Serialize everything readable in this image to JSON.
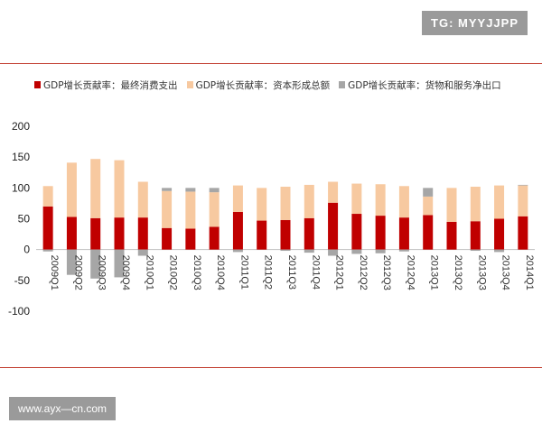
{
  "header": {
    "tag": "TG: MYYJJPP"
  },
  "footer": {
    "url": "www.ayx—cn.com"
  },
  "chart_data": {
    "type": "bar",
    "stacked": true,
    "categories": [
      "2009Q1",
      "2009Q2",
      "2009Q3",
      "2009Q4",
      "2010Q1",
      "2010Q2",
      "2010Q3",
      "2010Q4",
      "2011Q1",
      "2011Q2",
      "2011Q3",
      "2011Q4",
      "2012Q1",
      "2012Q2",
      "2012Q3",
      "2012Q4",
      "2013Q1",
      "2013Q2",
      "2013Q3",
      "2013Q4",
      "2014Q1"
    ],
    "series": [
      {
        "name": "GDP增长贡献率：最终消费支出",
        "color": "#c00000",
        "values": [
          70,
          53,
          51,
          52,
          52,
          35,
          34,
          37,
          61,
          47,
          48,
          51,
          76,
          58,
          55,
          52,
          56,
          45,
          46,
          50,
          54
        ]
      },
      {
        "name": "GDP增长贡献率：资本形成总额",
        "color": "#f7c9a0",
        "values": [
          33,
          88,
          96,
          93,
          58,
          60,
          60,
          56,
          43,
          53,
          54,
          54,
          34,
          49,
          51,
          51,
          30,
          55,
          56,
          54,
          50
        ]
      },
      {
        "name": "GDP增长贡献率：货物和服务净出口",
        "color": "#a6a6a6",
        "values": [
          -3,
          -41,
          -47,
          -45,
          -10,
          5,
          6,
          7,
          -4,
          0,
          -2,
          -5,
          -10,
          -7,
          -6,
          -3,
          14,
          0,
          -2,
          -4,
          1
        ]
      }
    ],
    "ylim": [
      -100,
      200
    ],
    "yticks": [
      200,
      150,
      100,
      50,
      0,
      -50,
      -100
    ],
    "ytick_labels": [
      "200",
      "150",
      "100",
      "50",
      "0",
      "-50",
      "-100"
    ],
    "legend_position": "top",
    "grid": false
  }
}
